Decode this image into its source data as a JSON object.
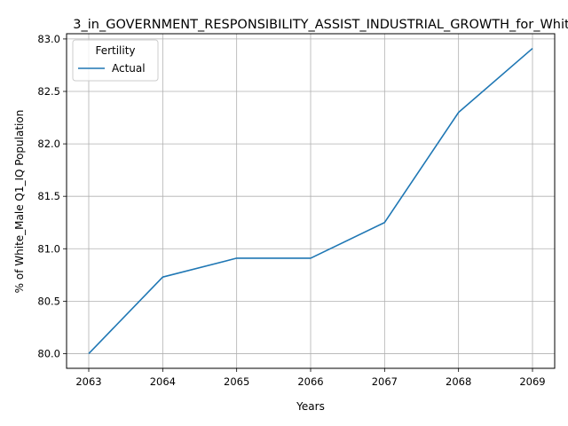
{
  "chart_data": {
    "type": "line",
    "title": "3_in_GOVERNMENT_RESPONSIBILITY_ASSIST_INDUSTRIAL_GROWTH_for_Whit",
    "xlabel": "Years",
    "ylabel": "% of White_Male Q1_IQ Population",
    "x": [
      2063,
      2064,
      2065,
      2066,
      2067,
      2068,
      2069
    ],
    "x_ticks": [
      "2063",
      "2064",
      "2065",
      "2066",
      "2067",
      "2068",
      "2069"
    ],
    "y_ticks": [
      "80.0",
      "80.5",
      "81.0",
      "81.5",
      "82.0",
      "82.5",
      "83.0"
    ],
    "xlim": [
      2062.7,
      2069.3
    ],
    "ylim": [
      79.86,
      83.05
    ],
    "grid": true,
    "legend": {
      "title": "Fertility",
      "placement": "top-left"
    },
    "series": [
      {
        "name": "Actual",
        "color": "#1f77b4",
        "values": [
          80.0,
          80.73,
          80.91,
          80.91,
          81.25,
          82.3,
          82.91
        ]
      }
    ]
  }
}
